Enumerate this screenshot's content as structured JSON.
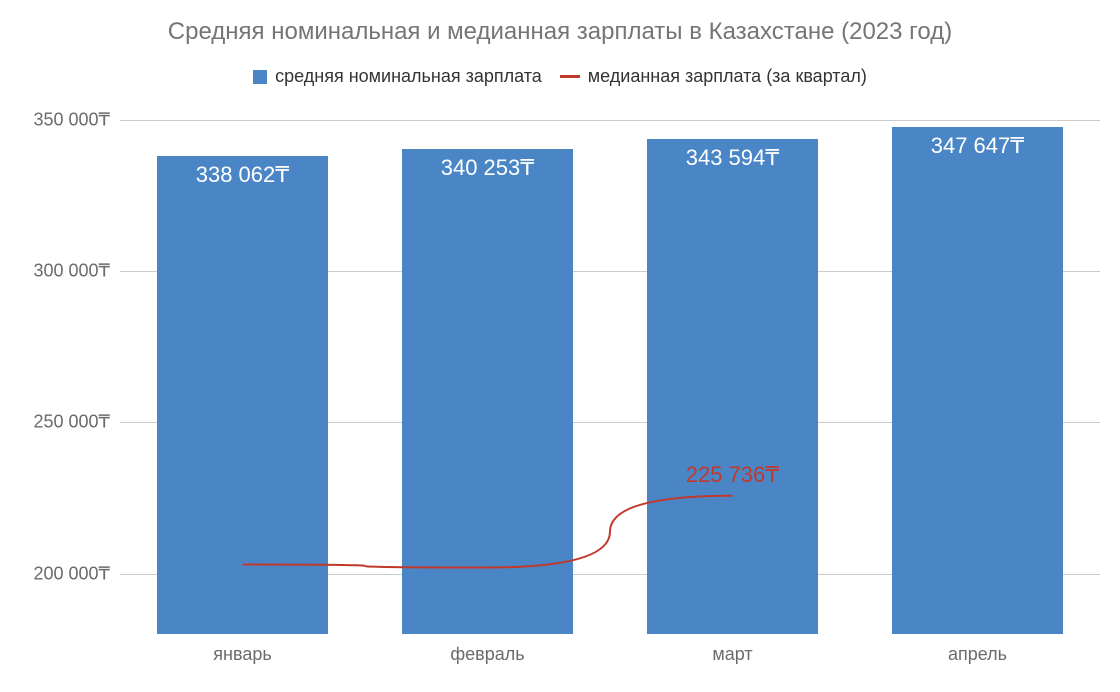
{
  "chart": {
    "type": "bar+line",
    "title": "Средняя номинальная и медианная зарплаты в Казахстане (2023 год)",
    "title_color": "#757575",
    "title_fontsize": 24,
    "background_color": "#ffffff",
    "grid_color": "#cccccc",
    "axis_label_color": "#6b6b6b",
    "axis_label_fontsize": 18,
    "currency_symbol": "₸",
    "legend": {
      "items": [
        {
          "label": "средняя номинальная зарплата",
          "color": "#4a86c5",
          "type": "bar"
        },
        {
          "label": "медианная зарплата (за квартал)",
          "color": "#c0392b",
          "type": "line"
        }
      ],
      "fontsize": 18,
      "text_color": "#333333"
    },
    "categories": [
      "январь",
      "февраль",
      "март",
      "апрель"
    ],
    "bars": {
      "values": [
        338062,
        340253,
        343594,
        347647
      ],
      "labels": [
        "338 062₸",
        "340 253₸",
        "343 594₸",
        "347 647₸"
      ],
      "color": "#4a86c5",
      "bar_width": 0.7,
      "value_label_color": "#ffffff",
      "value_label_fontsize": 22
    },
    "line": {
      "points": [
        {
          "category_index": 0,
          "value": 203000
        },
        {
          "category_index": 1,
          "value": 202000
        },
        {
          "category_index": 2,
          "value": 225736
        }
      ],
      "label_point_index": 2,
      "label_text": "225 736₸",
      "color": "#c0392b",
      "stroke_width": 2,
      "label_fontsize": 22
    },
    "y_axis": {
      "min": 180000,
      "max": 350000,
      "ticks": [
        200000,
        250000,
        300000,
        350000
      ],
      "tick_labels": [
        "200 000₸",
        "250 000₸",
        "300 000₸",
        "350 000₸"
      ]
    }
  }
}
